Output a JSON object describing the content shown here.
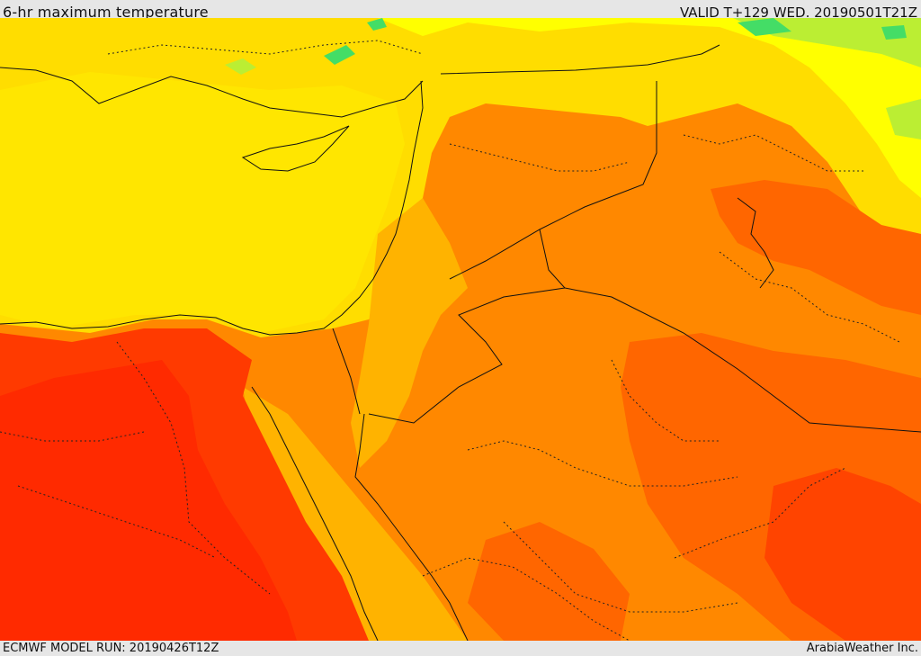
{
  "header": {
    "title": "6-hr maximum temperature",
    "valid_label": "VALID T+129 WED. 20190501T21Z"
  },
  "footer": {
    "model_run": "ECMWF MODEL RUN: 20190426T12Z",
    "credit": "ArabiaWeather Inc."
  },
  "map": {
    "colors": {
      "green": "#44dd66",
      "light_green": "#bbee33",
      "yellow": "#ffff00",
      "yellow_orange": "#ffdd00",
      "light_orange": "#ffb300",
      "orange": "#ff8800",
      "dark_orange": "#ff6600",
      "red_orange": "#ff4400",
      "red": "#ff2a00"
    }
  }
}
